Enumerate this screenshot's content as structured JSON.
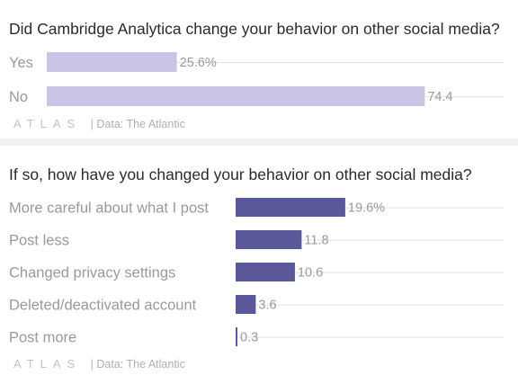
{
  "charts": [
    {
      "title": "Did Cambridge Analytica change your behavior on other social media?",
      "logo": "ATLAS",
      "source": "| Data: The Atlantic",
      "bar_color": "#c8c6e4"
    },
    {
      "title": "If so, how have you changed your behavior on other social media?",
      "logo": "ATLAS",
      "source": "| Data: The Atlantic",
      "bar_color": "#5a5898"
    }
  ],
  "chart_data": [
    {
      "type": "bar",
      "orientation": "horizontal",
      "title": "Did Cambridge Analytica change your behavior on other social media?",
      "categories": [
        "Yes",
        "No"
      ],
      "values": [
        25.6,
        74.4
      ],
      "value_labels": [
        "25.6%",
        "74.4"
      ],
      "xlim": [
        0,
        100
      ],
      "grid": true
    },
    {
      "type": "bar",
      "orientation": "horizontal",
      "title": "If so, how have you changed your behavior on other social media?",
      "categories": [
        "More careful about what I post",
        "Post less",
        "Changed privacy settings",
        "Deleted/deactivated account",
        "Post more"
      ],
      "values": [
        19.6,
        11.8,
        10.6,
        3.6,
        0.3
      ],
      "value_labels": [
        "19.6%",
        "11.8",
        "10.6",
        "3.6",
        "0.3"
      ],
      "xlim": [
        0,
        100
      ],
      "grid": true
    }
  ]
}
